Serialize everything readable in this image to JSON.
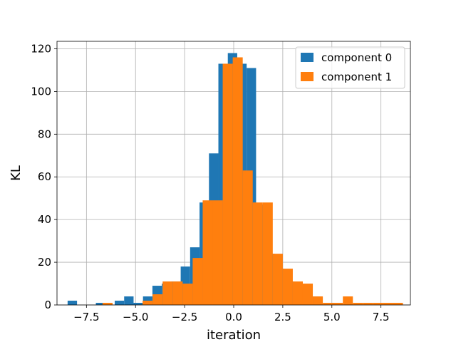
{
  "chart_data": {
    "type": "bar",
    "histogram": true,
    "xlabel": "iteration",
    "ylabel": "KL",
    "xlim": [
      -9.0,
      9.0
    ],
    "ylim": [
      0,
      123.5
    ],
    "x_ticks": [
      -7.5,
      -5.0,
      -2.5,
      0.0,
      2.5,
      5.0,
      7.5
    ],
    "x_tick_labels": [
      "−7.5",
      "−5.0",
      "−2.5",
      "0.0",
      "2.5",
      "5.0",
      "7.5"
    ],
    "y_ticks": [
      0,
      20,
      40,
      60,
      80,
      100,
      120
    ],
    "y_tick_labels": [
      "0",
      "20",
      "40",
      "60",
      "80",
      "100",
      "120"
    ],
    "grid": true,
    "legend_position": "top-right",
    "series": [
      {
        "name": "component 0",
        "color": "#1f77b4",
        "bins": [
          {
            "x0": -8.46,
            "x1": -7.98,
            "value": 2
          },
          {
            "x0": -7.98,
            "x1": -7.5,
            "value": 0
          },
          {
            "x0": -7.5,
            "x1": -7.02,
            "value": 0
          },
          {
            "x0": -7.02,
            "x1": -6.54,
            "value": 1
          },
          {
            "x0": -6.54,
            "x1": -6.06,
            "value": 0
          },
          {
            "x0": -6.06,
            "x1": -5.58,
            "value": 2
          },
          {
            "x0": -5.58,
            "x1": -5.1,
            "value": 4
          },
          {
            "x0": -5.1,
            "x1": -4.62,
            "value": 1
          },
          {
            "x0": -4.62,
            "x1": -4.14,
            "value": 4
          },
          {
            "x0": -4.14,
            "x1": -3.66,
            "value": 9
          },
          {
            "x0": -3.66,
            "x1": -3.18,
            "value": 10
          },
          {
            "x0": -3.18,
            "x1": -2.7,
            "value": 11
          },
          {
            "x0": -2.7,
            "x1": -2.22,
            "value": 18
          },
          {
            "x0": -2.22,
            "x1": -1.74,
            "value": 27
          },
          {
            "x0": -1.74,
            "x1": -1.26,
            "value": 48
          },
          {
            "x0": -1.26,
            "x1": -0.78,
            "value": 71
          },
          {
            "x0": -0.78,
            "x1": -0.3,
            "value": 113
          },
          {
            "x0": -0.3,
            "x1": 0.18,
            "value": 118
          },
          {
            "x0": 0.18,
            "x1": 0.66,
            "value": 113
          },
          {
            "x0": 0.66,
            "x1": 1.14,
            "value": 111
          },
          {
            "x0": 1.14,
            "x1": 1.62,
            "value": 47
          },
          {
            "x0": 1.62,
            "x1": 2.1,
            "value": 24
          },
          {
            "x0": 2.1,
            "x1": 2.58,
            "value": 17
          },
          {
            "x0": 2.58,
            "x1": 3.06,
            "value": 11
          },
          {
            "x0": 3.06,
            "x1": 3.54,
            "value": 8
          },
          {
            "x0": 3.54,
            "x1": 4.02,
            "value": 9
          },
          {
            "x0": 4.02,
            "x1": 4.5,
            "value": 4
          },
          {
            "x0": 4.5,
            "x1": 4.98,
            "value": 0
          },
          {
            "x0": 4.98,
            "x1": 5.46,
            "value": 1
          }
        ]
      },
      {
        "name": "component 1",
        "color": "#ff7f0e",
        "bins": [
          {
            "x0": -7.19,
            "x1": -6.68,
            "value": 0
          },
          {
            "x0": -6.68,
            "x1": -6.17,
            "value": 1
          },
          {
            "x0": -6.17,
            "x1": -5.66,
            "value": 0
          },
          {
            "x0": -5.66,
            "x1": -5.15,
            "value": 0
          },
          {
            "x0": -5.15,
            "x1": -4.64,
            "value": 0
          },
          {
            "x0": -4.64,
            "x1": -4.13,
            "value": 2
          },
          {
            "x0": -4.13,
            "x1": -3.62,
            "value": 5
          },
          {
            "x0": -3.62,
            "x1": -3.11,
            "value": 11
          },
          {
            "x0": -3.11,
            "x1": -2.6,
            "value": 11
          },
          {
            "x0": -2.6,
            "x1": -2.09,
            "value": 10
          },
          {
            "x0": -2.09,
            "x1": -1.58,
            "value": 22
          },
          {
            "x0": -1.58,
            "x1": -1.07,
            "value": 49
          },
          {
            "x0": -1.07,
            "x1": -0.56,
            "value": 49
          },
          {
            "x0": -0.56,
            "x1": -0.05,
            "value": 113
          },
          {
            "x0": -0.05,
            "x1": 0.46,
            "value": 116
          },
          {
            "x0": 0.46,
            "x1": 0.97,
            "value": 63
          },
          {
            "x0": 0.97,
            "x1": 1.48,
            "value": 48
          },
          {
            "x0": 1.48,
            "x1": 1.99,
            "value": 48
          },
          {
            "x0": 1.99,
            "x1": 2.5,
            "value": 24
          },
          {
            "x0": 2.5,
            "x1": 3.01,
            "value": 17
          },
          {
            "x0": 3.01,
            "x1": 3.52,
            "value": 11
          },
          {
            "x0": 3.52,
            "x1": 4.03,
            "value": 10
          },
          {
            "x0": 4.03,
            "x1": 4.54,
            "value": 4
          },
          {
            "x0": 4.54,
            "x1": 5.05,
            "value": 1
          },
          {
            "x0": 5.05,
            "x1": 5.56,
            "value": 1
          },
          {
            "x0": 5.56,
            "x1": 6.07,
            "value": 4
          },
          {
            "x0": 6.07,
            "x1": 6.58,
            "value": 1
          },
          {
            "x0": 6.58,
            "x1": 7.09,
            "value": 1
          },
          {
            "x0": 7.09,
            "x1": 7.6,
            "value": 1
          },
          {
            "x0": 7.6,
            "x1": 8.11,
            "value": 1
          },
          {
            "x0": 8.11,
            "x1": 8.62,
            "value": 1
          }
        ]
      }
    ]
  }
}
